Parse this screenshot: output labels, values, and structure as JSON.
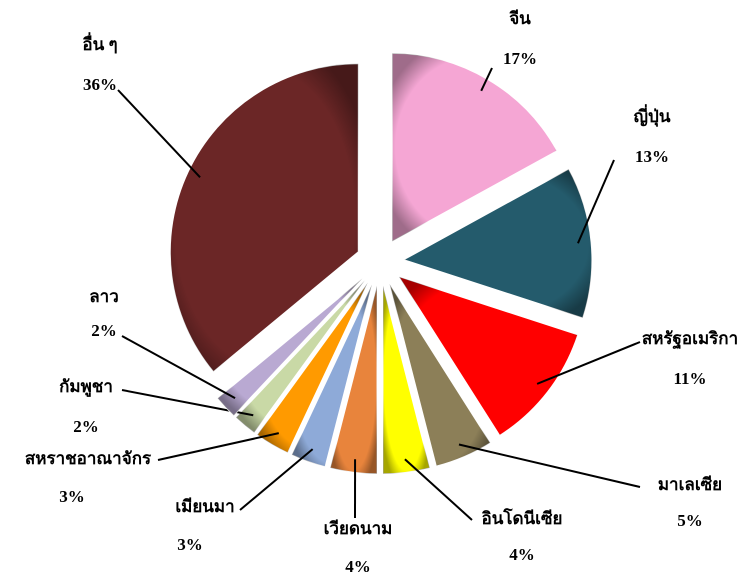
{
  "chart_data": {
    "type": "pie",
    "categories": [
      "จีน",
      "ญี่ปุ่น",
      "สหรัฐอเมริกา",
      "มาเลเซีย",
      "อินโดนีเซีย",
      "เวียดนาม",
      "เมียนมา",
      "สหราชอาณาจักร",
      "กัมพูชา",
      "ลาว",
      "อื่น ๆ"
    ],
    "values": [
      17,
      13,
      11,
      5,
      4,
      4,
      3,
      3,
      2,
      2,
      36
    ],
    "value_labels": [
      "17%",
      "13%",
      "11%",
      "5%",
      "4%",
      "4%",
      "3%",
      "3%",
      "2%",
      "2%",
      "36%"
    ],
    "colors": [
      "#f5a6d4",
      "#245b6c",
      "#ff0000",
      "#8c7f58",
      "#ffff00",
      "#e8843c",
      "#8eaad8",
      "#ff9a00",
      "#c9d9a6",
      "#b9a9d2",
      "#6b2626"
    ]
  }
}
